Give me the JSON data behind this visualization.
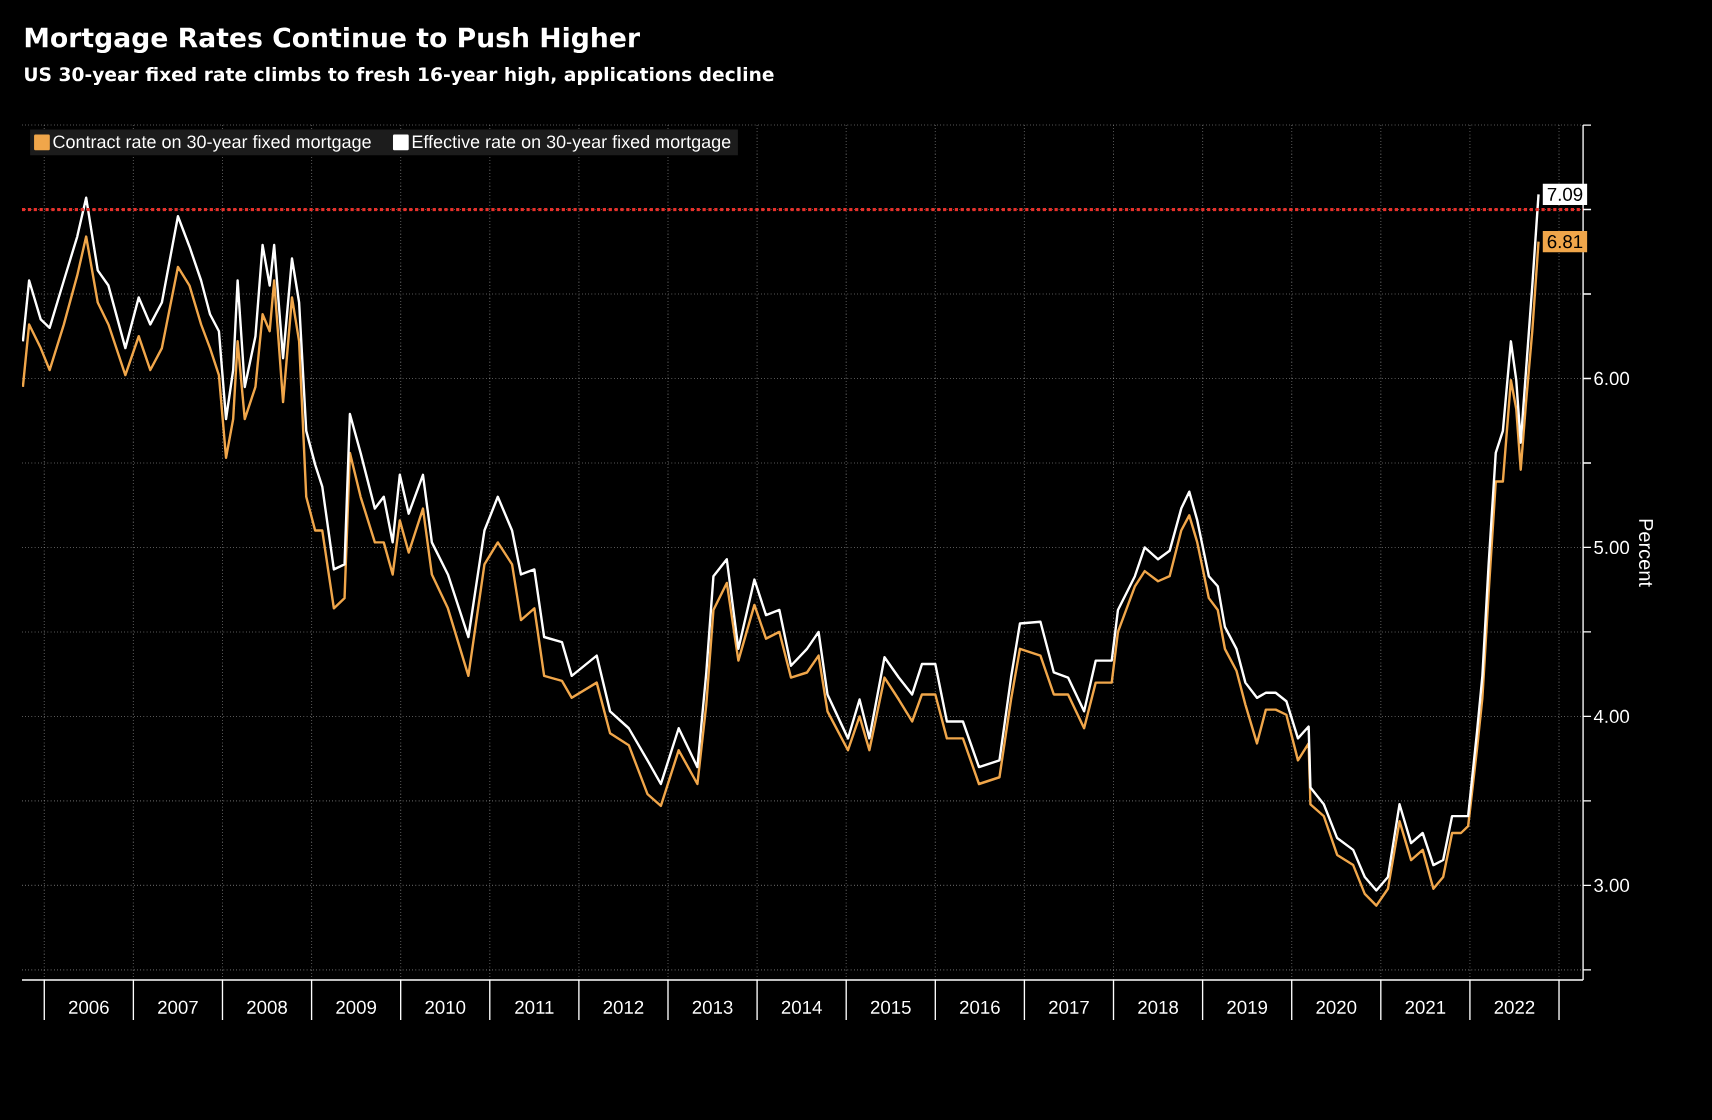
{
  "chart_data": {
    "type": "line",
    "title": "Mortgage Rates Continue to Push Higher",
    "subtitle": "US 30-year fixed rate climbs to fresh 16-year high, applications decline",
    "ylabel": "Percent",
    "x": [
      2005.76,
      2005.83,
      2005.96,
      2006.06,
      2006.22,
      2006.37,
      2006.47,
      2006.6,
      2006.72,
      2006.91,
      2007.06,
      2007.19,
      2007.32,
      2007.5,
      2007.63,
      2007.76,
      2007.86,
      2007.96,
      2008.04,
      2008.12,
      2008.17,
      2008.25,
      2008.37,
      2008.45,
      2008.53,
      2008.58,
      2008.68,
      2008.78,
      2008.86,
      2008.94,
      2009.04,
      2009.12,
      2009.25,
      2009.37,
      2009.43,
      2009.55,
      2009.71,
      2009.81,
      2009.91,
      2009.99,
      2010.09,
      2010.25,
      2010.35,
      2010.53,
      2010.76,
      2010.94,
      2011.09,
      2011.25,
      2011.35,
      2011.5,
      2011.61,
      2011.81,
      2011.92,
      2012.2,
      2012.35,
      2012.56,
      2012.77,
      2012.92,
      2013.12,
      2013.33,
      2013.43,
      2013.51,
      2013.66,
      2013.79,
      2013.97,
      2014.1,
      2014.25,
      2014.38,
      2014.56,
      2014.69,
      2014.79,
      2015.02,
      2015.15,
      2015.26,
      2015.43,
      2015.59,
      2015.74,
      2015.85,
      2016.0,
      2016.13,
      2016.31,
      2016.49,
      2016.72,
      2016.85,
      2016.95,
      2017.18,
      2017.33,
      2017.49,
      2017.67,
      2017.8,
      2017.98,
      2018.05,
      2018.24,
      2018.35,
      2018.5,
      2018.63,
      2018.76,
      2018.85,
      2018.94,
      2019.07,
      2019.17,
      2019.25,
      2019.38,
      2019.48,
      2019.61,
      2019.71,
      2019.82,
      2019.94,
      2020.07,
      2020.19,
      2020.21,
      2020.36,
      2020.51,
      2020.69,
      2020.82,
      2020.95,
      2021.08,
      2021.21,
      2021.34,
      2021.47,
      2021.59,
      2021.7,
      2021.8,
      2021.9,
      2021.98,
      2022.08,
      2022.14,
      2022.21,
      2022.29,
      2022.37,
      2022.46,
      2022.52,
      2022.57,
      2022.63,
      2022.7,
      2022.77
    ],
    "series": [
      {
        "name": "Contract rate on 30-year fixed mortgage",
        "color": "#f0a64a",
        "values": [
          5.95,
          6.32,
          6.18,
          6.05,
          6.32,
          6.61,
          6.84,
          6.45,
          6.32,
          6.02,
          6.25,
          6.05,
          6.18,
          6.66,
          6.55,
          6.32,
          6.18,
          6.02,
          5.53,
          5.76,
          6.22,
          5.76,
          5.95,
          6.38,
          6.28,
          6.58,
          5.86,
          6.48,
          6.22,
          5.3,
          5.1,
          5.1,
          4.64,
          4.7,
          5.56,
          5.3,
          5.03,
          5.03,
          4.84,
          5.16,
          4.97,
          5.23,
          4.84,
          4.64,
          4.24,
          4.9,
          5.03,
          4.9,
          4.57,
          4.64,
          4.24,
          4.21,
          4.11,
          4.2,
          3.9,
          3.83,
          3.54,
          3.47,
          3.8,
          3.6,
          4.07,
          4.63,
          4.79,
          4.33,
          4.66,
          4.46,
          4.5,
          4.23,
          4.26,
          4.36,
          4.03,
          3.8,
          4.0,
          3.8,
          4.23,
          4.1,
          3.97,
          4.13,
          4.13,
          3.87,
          3.87,
          3.6,
          3.64,
          4.1,
          4.4,
          4.36,
          4.13,
          4.13,
          3.93,
          4.2,
          4.2,
          4.5,
          4.77,
          4.86,
          4.8,
          4.83,
          5.1,
          5.19,
          5.03,
          4.7,
          4.63,
          4.4,
          4.27,
          4.07,
          3.84,
          4.04,
          4.04,
          4.01,
          3.74,
          3.84,
          3.48,
          3.41,
          3.18,
          3.12,
          2.95,
          2.88,
          2.98,
          3.38,
          3.15,
          3.21,
          2.98,
          3.05,
          3.31,
          3.31,
          3.35,
          3.81,
          4.11,
          4.73,
          5.39,
          5.39,
          5.99,
          5.82,
          5.46,
          5.86,
          6.28,
          6.81
        ]
      },
      {
        "name": "Effective rate on 30-year fixed mortgage",
        "color": "#ffffff",
        "values": [
          6.22,
          6.58,
          6.35,
          6.3,
          6.58,
          6.84,
          7.07,
          6.64,
          6.55,
          6.18,
          6.48,
          6.32,
          6.45,
          6.96,
          6.78,
          6.58,
          6.38,
          6.28,
          5.76,
          6.05,
          6.58,
          5.95,
          6.25,
          6.79,
          6.55,
          6.79,
          6.12,
          6.71,
          6.45,
          5.69,
          5.49,
          5.36,
          4.87,
          4.9,
          5.79,
          5.56,
          5.23,
          5.3,
          5.03,
          5.43,
          5.2,
          5.43,
          5.03,
          4.84,
          4.47,
          5.1,
          5.3,
          5.1,
          4.84,
          4.87,
          4.47,
          4.44,
          4.24,
          4.36,
          4.03,
          3.93,
          3.74,
          3.6,
          3.93,
          3.7,
          4.26,
          4.83,
          4.93,
          4.4,
          4.81,
          4.6,
          4.63,
          4.3,
          4.4,
          4.5,
          4.13,
          3.87,
          4.1,
          3.87,
          4.35,
          4.23,
          4.13,
          4.31,
          4.31,
          3.97,
          3.97,
          3.7,
          3.74,
          4.23,
          4.55,
          4.56,
          4.26,
          4.23,
          4.03,
          4.33,
          4.33,
          4.63,
          4.83,
          5.0,
          4.93,
          4.98,
          5.23,
          5.33,
          5.16,
          4.83,
          4.77,
          4.53,
          4.4,
          4.2,
          4.11,
          4.14,
          4.14,
          4.09,
          3.87,
          3.94,
          3.58,
          3.48,
          3.28,
          3.21,
          3.05,
          2.97,
          3.05,
          3.48,
          3.25,
          3.31,
          3.12,
          3.15,
          3.41,
          3.41,
          3.41,
          3.91,
          4.24,
          4.9,
          5.56,
          5.69,
          6.22,
          5.99,
          5.62,
          6.05,
          6.55,
          7.09
        ]
      }
    ],
    "xlim": [
      2005.75,
      2023.27
    ],
    "xticks": [
      {
        "value": 2006,
        "label": null
      },
      {
        "value": 2006.5,
        "label": "2006"
      },
      {
        "value": 2007,
        "label": null
      },
      {
        "value": 2007.5,
        "label": "2007"
      },
      {
        "value": 2008,
        "label": null
      },
      {
        "value": 2008.5,
        "label": "2008"
      },
      {
        "value": 2009,
        "label": null
      },
      {
        "value": 2009.5,
        "label": "2009"
      },
      {
        "value": 2010,
        "label": null
      },
      {
        "value": 2010.5,
        "label": "2010"
      },
      {
        "value": 2011,
        "label": null
      },
      {
        "value": 2011.5,
        "label": "2011"
      },
      {
        "value": 2012,
        "label": null
      },
      {
        "value": 2012.5,
        "label": "2012"
      },
      {
        "value": 2013,
        "label": null
      },
      {
        "value": 2013.5,
        "label": "2013"
      },
      {
        "value": 2014,
        "label": null
      },
      {
        "value": 2014.5,
        "label": "2014"
      },
      {
        "value": 2015,
        "label": null
      },
      {
        "value": 2015.5,
        "label": "2015"
      },
      {
        "value": 2016,
        "label": null
      },
      {
        "value": 2016.5,
        "label": "2016"
      },
      {
        "value": 2017,
        "label": null
      },
      {
        "value": 2017.5,
        "label": "2017"
      },
      {
        "value": 2018,
        "label": null
      },
      {
        "value": 2018.5,
        "label": "2018"
      },
      {
        "value": 2019,
        "label": null
      },
      {
        "value": 2019.5,
        "label": "2019"
      },
      {
        "value": 2020,
        "label": null
      },
      {
        "value": 2020.5,
        "label": "2020"
      },
      {
        "value": 2021,
        "label": null
      },
      {
        "value": 2021.5,
        "label": "2021"
      },
      {
        "value": 2022,
        "label": null
      },
      {
        "value": 2022.5,
        "label": "2022"
      },
      {
        "value": 2023,
        "label": null
      }
    ],
    "ylim": [
      2.44,
      7.5
    ],
    "yticks": [
      {
        "value": 2.5,
        "label": null
      },
      {
        "value": 3,
        "label": "3.00"
      },
      {
        "value": 3.5,
        "label": null
      },
      {
        "value": 4,
        "label": "4.00"
      },
      {
        "value": 4.5,
        "label": null
      },
      {
        "value": 5,
        "label": "5.00"
      },
      {
        "value": 5.5,
        "label": null
      },
      {
        "value": 6,
        "label": "6.00"
      },
      {
        "value": 6.5,
        "label": null
      },
      {
        "value": 7,
        "label": null
      },
      {
        "value": 7.5,
        "label": null
      }
    ],
    "ref_lines": [
      {
        "axis": "y",
        "value": 7,
        "color": "#e8302a",
        "line_style": "dotted"
      }
    ],
    "annotations": [
      {
        "text": "6.81",
        "x": 2022.77,
        "y": 6.81
      },
      {
        "text": "7.09",
        "x": 2022.77,
        "y": 7.09
      }
    ],
    "grid": true,
    "legend": "top left"
  }
}
